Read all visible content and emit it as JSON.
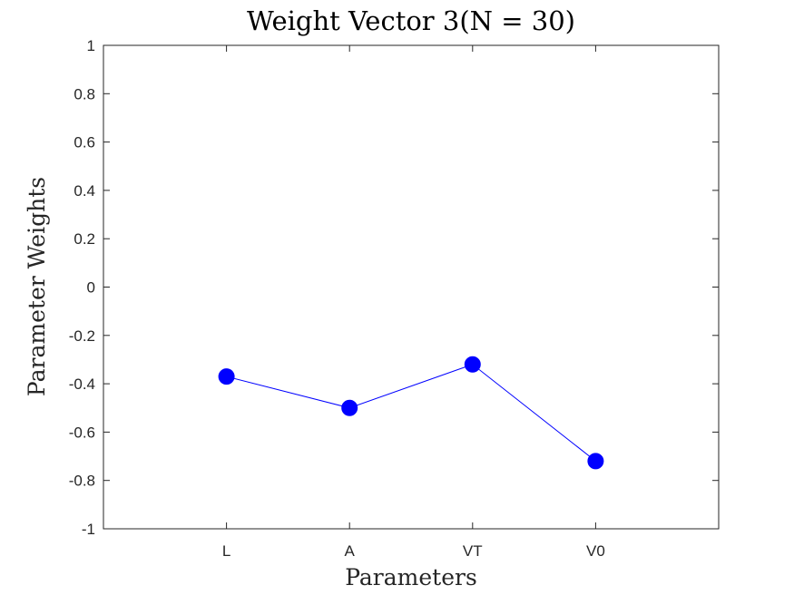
{
  "chart_data": {
    "type": "line",
    "title": "Weight Vector 3(N = 30)",
    "xlabel": "Parameters",
    "ylabel": "Parameter Weights",
    "categories": [
      "L",
      "A",
      "VT",
      "V0"
    ],
    "xlim": [
      0,
      5
    ],
    "ylim": [
      -1,
      1
    ],
    "yticks": [
      "-1",
      "-0.8",
      "-0.6",
      "-0.4",
      "-0.2",
      "0",
      "0.2",
      "0.4",
      "0.6",
      "0.8",
      "1"
    ],
    "series": [
      {
        "values": [
          -0.37,
          -0.5,
          -0.32,
          -0.72
        ],
        "color": "#0000ff",
        "marker": "circle"
      }
    ],
    "grid": false,
    "legend": "none"
  }
}
